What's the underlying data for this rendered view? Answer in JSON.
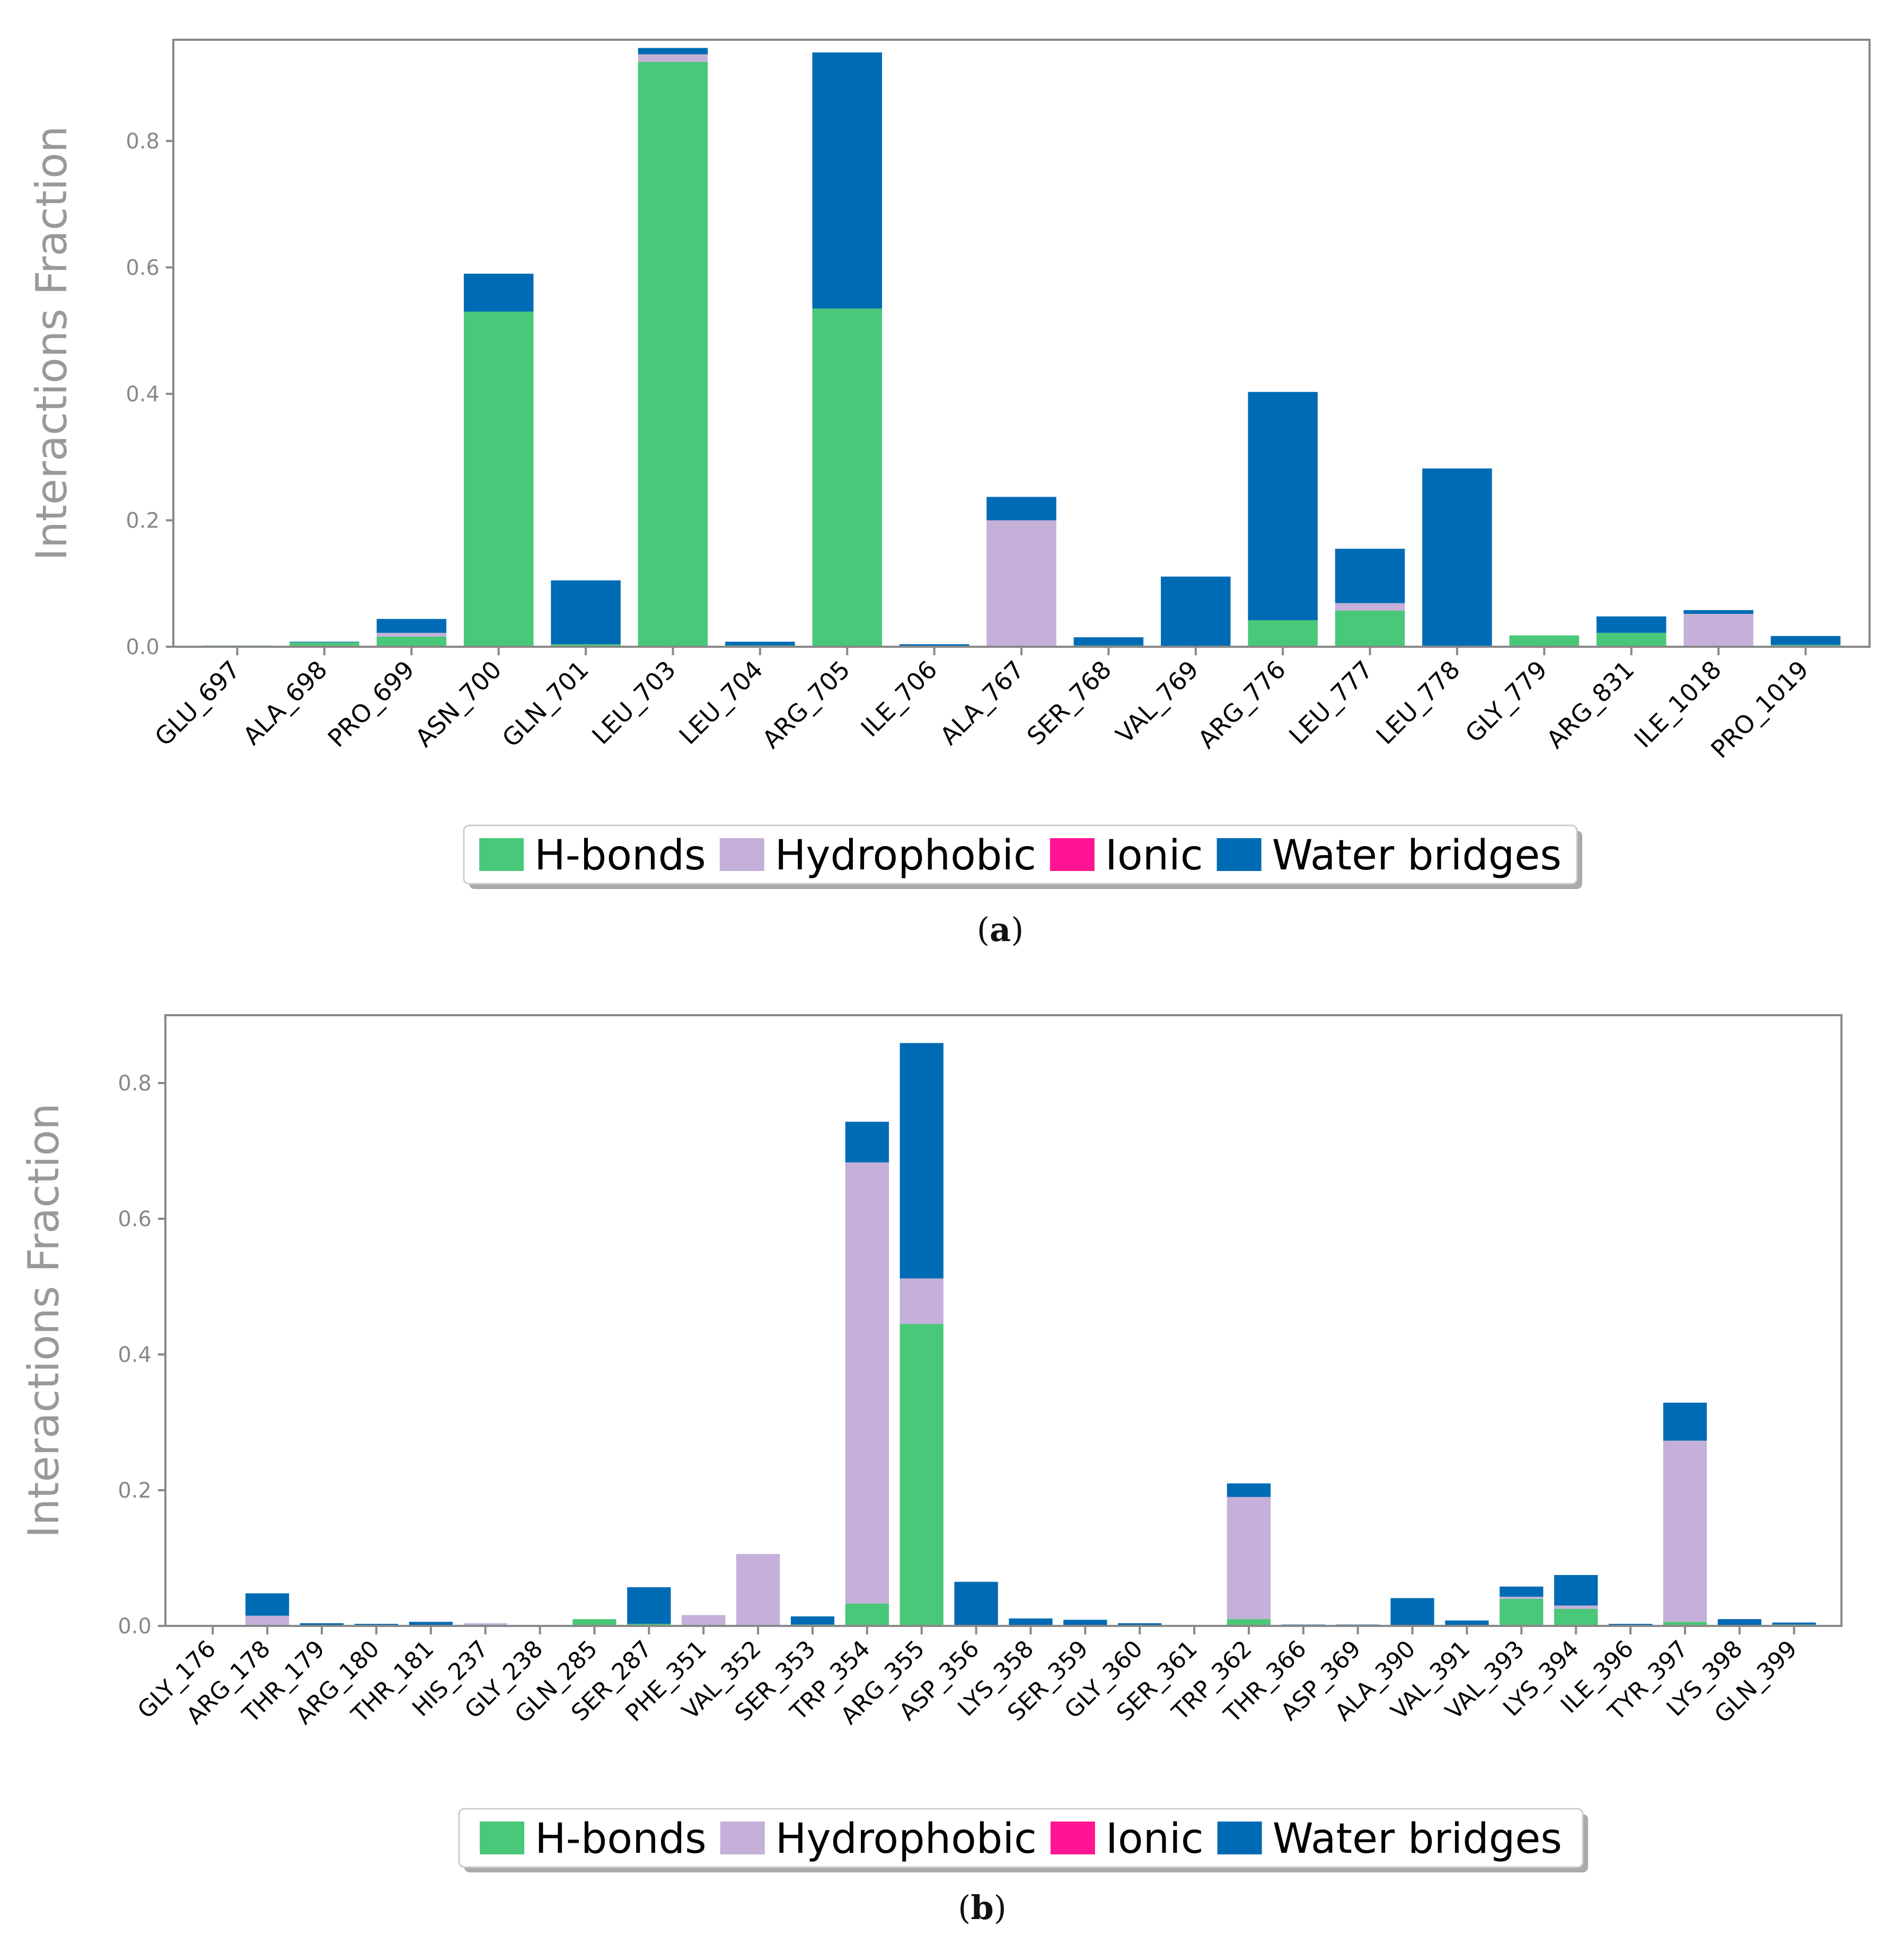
{
  "colors": {
    "hbonds": "#48c878",
    "hydrophobic": "#c4b0d8",
    "ionic": "#ff1493",
    "water": "#006bb5",
    "axis": "#888888",
    "tick_text": "#888888",
    "ylabel_text": "#999999"
  },
  "legend": {
    "hbonds": "H-bonds",
    "hydrophobic": "Hydrophobic",
    "ionic": "Ionic",
    "water": "Water bridges"
  },
  "chart_data": [
    {
      "type": "bar",
      "stacked": true,
      "caption_letter": "a",
      "ylabel": "Interactions Fraction",
      "ylim": [
        0,
        0.96
      ],
      "yticks": [
        "0.0",
        "0.2",
        "0.4",
        "0.6",
        "0.8"
      ],
      "legend_position": "bottom-center",
      "categories": [
        "GLU_697",
        "ALA_698",
        "PRO_699",
        "ASN_700",
        "GLN_701",
        "LEU_703",
        "LEU_704",
        "ARG_705",
        "ILE_706",
        "ALA_767",
        "SER_768",
        "VAL_769",
        "ARG_776",
        "LEU_777",
        "LEU_778",
        "GLY_779",
        "ARG_831",
        "ILE_1018",
        "PRO_1019"
      ],
      "series": [
        {
          "name": "H-bonds",
          "key": "hbonds",
          "values": [
            0.002,
            0.007,
            0.016,
            0.53,
            0.004,
            0.925,
            0.002,
            0.535,
            0.001,
            0.0,
            0.002,
            0.0,
            0.042,
            0.057,
            0.0,
            0.018,
            0.022,
            0.0,
            0.003
          ]
        },
        {
          "name": "Hydrophobic",
          "key": "hydrophobic",
          "values": [
            0.0,
            0.0,
            0.006,
            0.0,
            0.0,
            0.012,
            0.0,
            0.0,
            0.0,
            0.2,
            0.0,
            0.0,
            0.0,
            0.012,
            0.0,
            0.0,
            0.0,
            0.052,
            0.0
          ]
        },
        {
          "name": "Ionic",
          "key": "ionic",
          "values": [
            0,
            0,
            0,
            0,
            0,
            0,
            0,
            0,
            0,
            0,
            0,
            0,
            0,
            0,
            0,
            0,
            0,
            0,
            0
          ]
        },
        {
          "name": "Water bridges",
          "key": "water",
          "values": [
            0.0,
            0.001,
            0.022,
            0.06,
            0.101,
            0.01,
            0.006,
            0.405,
            0.003,
            0.037,
            0.013,
            0.111,
            0.361,
            0.086,
            0.282,
            0.0,
            0.026,
            0.006,
            0.014
          ]
        }
      ]
    },
    {
      "type": "bar",
      "stacked": true,
      "caption_letter": "b",
      "ylabel": "Interactions Fraction",
      "ylim": [
        0,
        0.9
      ],
      "yticks": [
        "0.0",
        "0.2",
        "0.4",
        "0.6",
        "0.8"
      ],
      "legend_position": "bottom-center",
      "categories": [
        "GLY_176",
        "ARG_178",
        "THR_179",
        "ARG_180",
        "THR_181",
        "HIS_237",
        "GLY_238",
        "GLN_285",
        "SER_287",
        "PHE_351",
        "VAL_352",
        "SER_353",
        "TRP_354",
        "ARG_355",
        "ASP_356",
        "LYS_358",
        "SER_359",
        "GLY_360",
        "SER_361",
        "TRP_362",
        "THR_366",
        "ASP_369",
        "ALA_390",
        "VAL_391",
        "VAL_393",
        "LYS_394",
        "ILE_396",
        "TYR_397",
        "LYS_398",
        "GLN_399"
      ],
      "series": [
        {
          "name": "H-bonds",
          "key": "hbonds",
          "values": [
            0.001,
            0.0,
            0.0,
            0.0,
            0.0,
            0.0,
            0.0,
            0.01,
            0.003,
            0.0,
            0.0,
            0.002,
            0.033,
            0.445,
            0.0,
            0.0,
            0.0,
            0.0,
            0.0,
            0.01,
            0.0,
            0.0,
            0.0,
            0.0,
            0.04,
            0.025,
            0.0,
            0.006,
            0.0,
            0.002
          ]
        },
        {
          "name": "Hydrophobic",
          "key": "hydrophobic",
          "values": [
            0.0,
            0.015,
            0.0,
            0.0,
            0.0,
            0.004,
            0.0,
            0.0,
            0.0,
            0.016,
            0.106,
            0.0,
            0.65,
            0.067,
            0.0,
            0.0,
            0.0,
            0.0,
            0.0,
            0.18,
            0.0,
            0.0,
            0.0,
            0.0,
            0.003,
            0.005,
            0.0,
            0.267,
            0.0,
            0.0
          ]
        },
        {
          "name": "Ionic",
          "key": "ionic",
          "values": [
            0,
            0,
            0,
            0,
            0,
            0,
            0,
            0,
            0,
            0,
            0,
            0,
            0,
            0,
            0,
            0,
            0,
            0,
            0,
            0,
            0,
            0,
            0,
            0,
            0,
            0,
            0,
            0,
            0,
            0
          ]
        },
        {
          "name": "Water bridges",
          "key": "water",
          "values": [
            0.0,
            0.033,
            0.004,
            0.003,
            0.006,
            0.0,
            0.0,
            0.0,
            0.054,
            0.0,
            0.0,
            0.012,
            0.06,
            0.347,
            0.065,
            0.011,
            0.009,
            0.004,
            0.0,
            0.02,
            0.002,
            0.002,
            0.041,
            0.008,
            0.015,
            0.045,
            0.003,
            0.056,
            0.01,
            0.003
          ]
        }
      ]
    }
  ]
}
